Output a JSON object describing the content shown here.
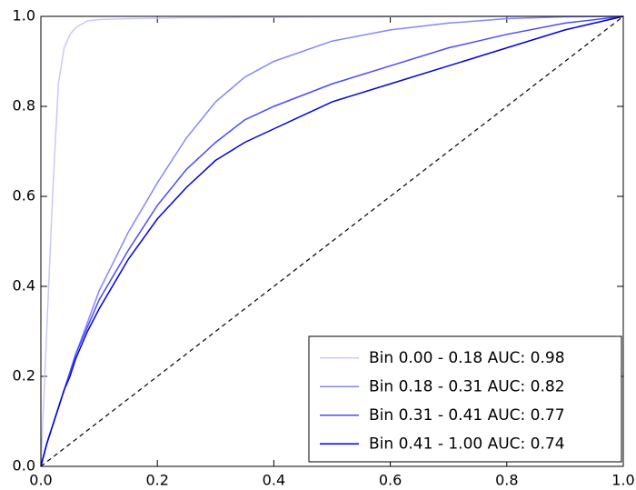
{
  "chart_data": {
    "type": "line",
    "x": [
      0,
      0.01,
      0.02,
      0.03,
      0.04,
      0.05,
      0.06,
      0.08,
      0.1,
      0.15,
      0.2,
      0.25,
      0.3,
      0.35,
      0.4,
      0.5,
      0.6,
      0.7,
      0.8,
      0.9,
      1.0
    ],
    "series": [
      {
        "name": "Bin 0.00 - 0.18 AUC: 0.98",
        "color": "#c8c8ff",
        "values": [
          0,
          0.3,
          0.6,
          0.85,
          0.93,
          0.96,
          0.975,
          0.99,
          0.993,
          0.995,
          0.996,
          0.997,
          0.997,
          0.998,
          0.998,
          0.999,
          0.999,
          1,
          1,
          1,
          1
        ]
      },
      {
        "name": "Bin 0.18 - 0.31 AUC: 0.82",
        "color": "#8585ff",
        "values": [
          0,
          0.05,
          0.09,
          0.13,
          0.17,
          0.21,
          0.25,
          0.32,
          0.39,
          0.52,
          0.63,
          0.73,
          0.81,
          0.865,
          0.9,
          0.945,
          0.97,
          0.985,
          0.995,
          0.999,
          1
        ]
      },
      {
        "name": "Bin 0.31 - 0.41 AUC: 0.77",
        "color": "#4a4aff",
        "values": [
          0,
          0.05,
          0.09,
          0.13,
          0.17,
          0.21,
          0.25,
          0.31,
          0.37,
          0.48,
          0.58,
          0.66,
          0.72,
          0.77,
          0.8,
          0.85,
          0.89,
          0.93,
          0.96,
          0.985,
          1
        ]
      },
      {
        "name": "Bin 0.41 - 1.00 AUC: 0.74",
        "color": "#0000dd",
        "values": [
          0,
          0.05,
          0.09,
          0.13,
          0.17,
          0.2,
          0.24,
          0.3,
          0.35,
          0.46,
          0.55,
          0.62,
          0.68,
          0.72,
          0.75,
          0.81,
          0.85,
          0.89,
          0.93,
          0.97,
          1
        ]
      }
    ],
    "xlim": [
      0,
      1
    ],
    "ylim": [
      0,
      1
    ],
    "xticks": [
      {
        "value": 0,
        "label": "0.0"
      },
      {
        "value": 0.2,
        "label": "0.2"
      },
      {
        "value": 0.4,
        "label": "0.4"
      },
      {
        "value": 0.6,
        "label": "0.6"
      },
      {
        "value": 0.8,
        "label": "0.8"
      },
      {
        "value": 1,
        "label": "1.0"
      }
    ],
    "yticks": [
      {
        "value": 0,
        "label": "0.0"
      },
      {
        "value": 0.2,
        "label": "0.2"
      },
      {
        "value": 0.4,
        "label": "0.4"
      },
      {
        "value": 0.6,
        "label": "0.6"
      },
      {
        "value": 0.8,
        "label": "0.8"
      },
      {
        "value": 1,
        "label": "1.0"
      }
    ],
    "diagonal": true,
    "legend": "lower right",
    "grid": false
  }
}
